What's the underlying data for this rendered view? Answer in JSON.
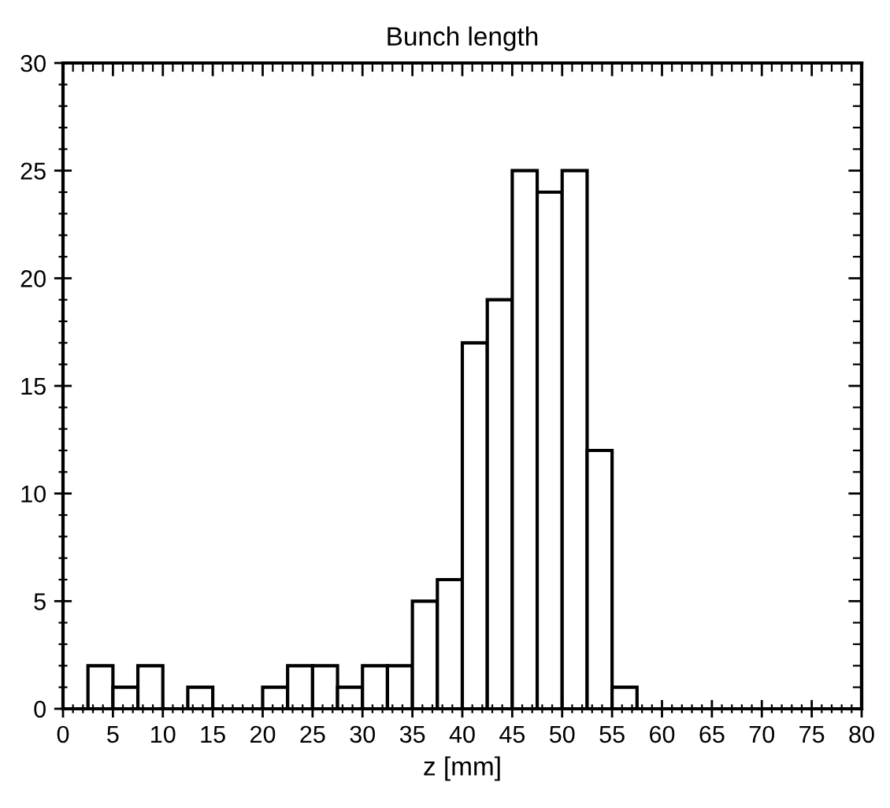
{
  "chart_data": {
    "type": "histogram",
    "title": "Bunch length",
    "xlabel": "z [mm]",
    "bins": [
      2.5,
      5,
      7.5,
      10,
      12.5,
      15,
      17.5,
      20,
      22.5,
      25,
      27.5,
      30,
      32.5,
      35,
      37.5,
      40,
      42.5,
      45,
      47.5,
      50,
      52.5,
      55,
      57.5
    ],
    "values": [
      2,
      1,
      2,
      0,
      1,
      0,
      0,
      1,
      2,
      2,
      1,
      2,
      2,
      5,
      6,
      17,
      19,
      25,
      24,
      25,
      12,
      1
    ],
    "color": "#ffffff",
    "xlim": [
      0,
      80
    ],
    "xticks": [
      0,
      5,
      10,
      15,
      20,
      25,
      30,
      35,
      40,
      45,
      50,
      55,
      60,
      65,
      70,
      75,
      80
    ],
    "ylim": [
      0,
      30
    ],
    "yticks": [
      0,
      5,
      10,
      15,
      20,
      25,
      30
    ],
    "grid": false
  }
}
